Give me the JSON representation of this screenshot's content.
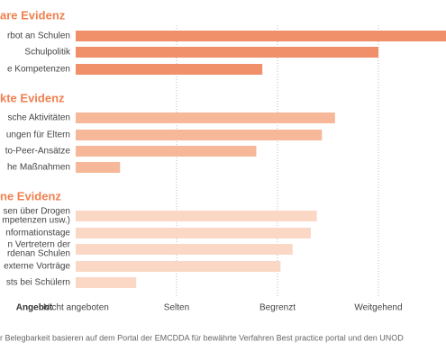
{
  "chart_data": {
    "type": "bar",
    "groups": [
      {
        "name": "are Evidenz",
        "color": "#f0906a",
        "categories": [
          [
            "rbot an Schulen"
          ],
          [
            "Schulpolitik"
          ],
          [
            "e Kompetenzen"
          ]
        ],
        "values": [
          3.67,
          3.0,
          1.85
        ]
      },
      {
        "name": "kte Evidenz",
        "color": "#f6b898",
        "categories": [
          [
            "sche Aktivitäten"
          ],
          [
            "ungen für Eltern"
          ],
          [
            "to-Peer-Ansätze"
          ],
          [
            "he Maßnahmen"
          ]
        ],
        "values": [
          2.57,
          2.44,
          1.79,
          0.44
        ]
      },
      {
        "name": "ne Evidenz",
        "color": "#fbd8c6",
        "categories": [
          [
            "sen über Drogen",
            "mpetenzen usw.)"
          ],
          [
            "nformationstage"
          ],
          [
            "n Vertretern der",
            "rdenan Schulen"
          ],
          [
            "externe Vorträge"
          ],
          [
            "sts bei Schülern"
          ]
        ],
        "values": [
          2.39,
          2.33,
          2.15,
          2.03,
          0.6
        ]
      }
    ],
    "x_label": "Angebot",
    "xlim": [
      0,
      3.67
    ],
    "xticks": [
      {
        "value": 0,
        "label": "Nicht angeboten"
      },
      {
        "value": 1,
        "label": "Selten"
      },
      {
        "value": 2,
        "label": "Begrenzt"
      },
      {
        "value": 3,
        "label": "Weitgehend"
      }
    ],
    "grid": true,
    "footnote": "r Belegbarkeit basieren auf dem Portal der EMCDDA für bewährte Verfahren Best practice portal und den UNOD"
  }
}
